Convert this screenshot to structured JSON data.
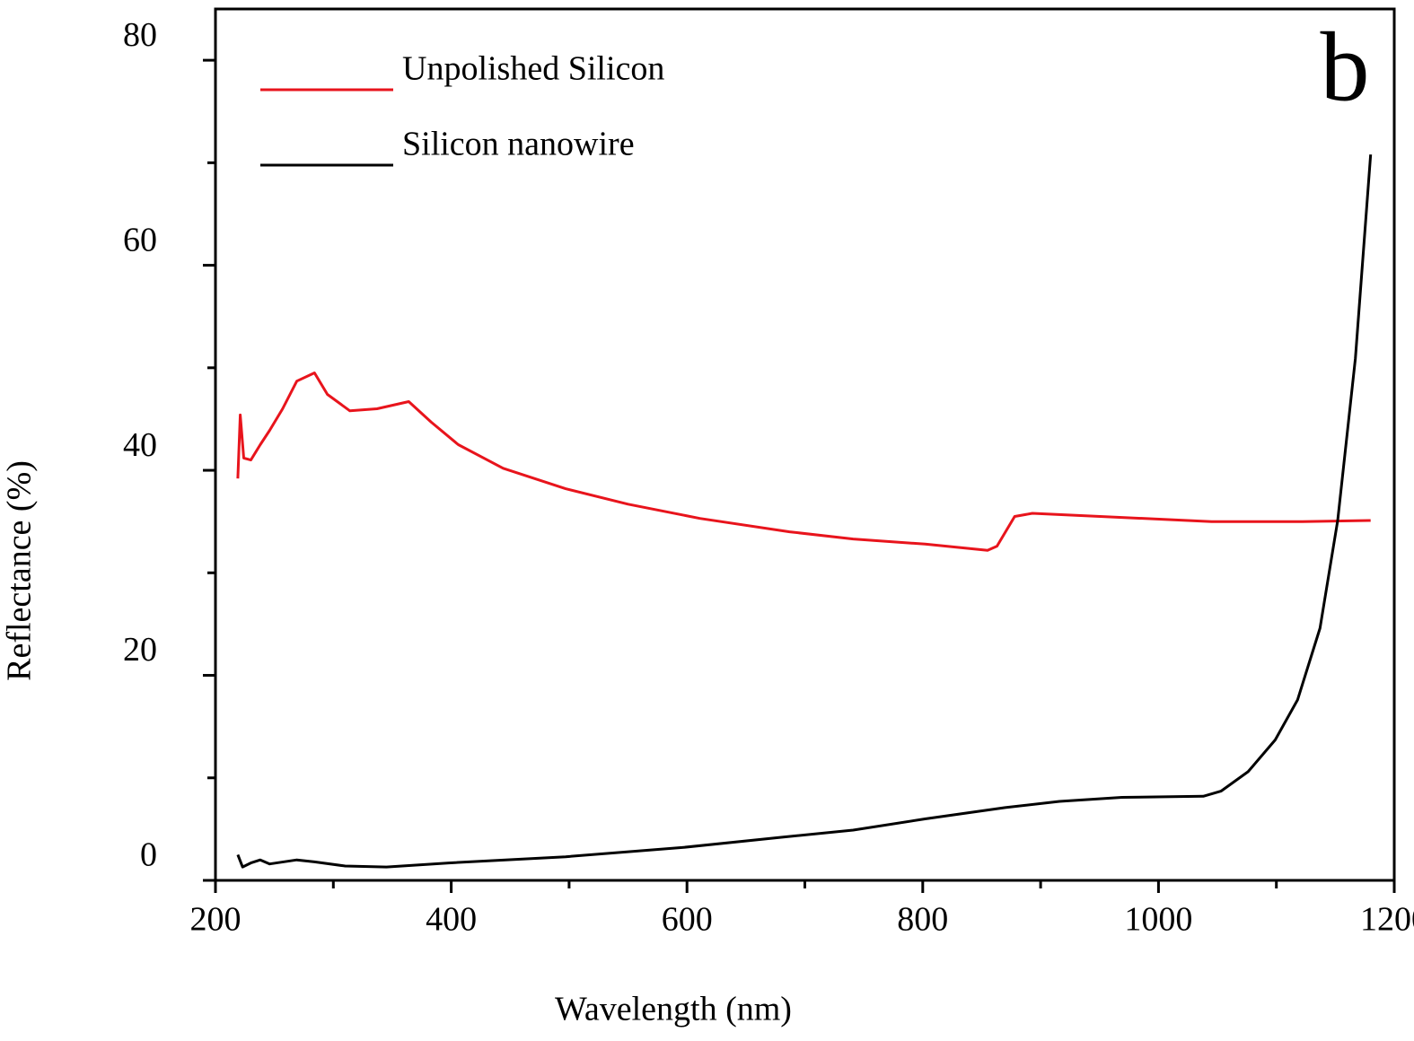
{
  "chart_data": {
    "type": "line",
    "annotation": "b",
    "xlabel": "Wavelength (nm)",
    "ylabel": "Reflectance (%)",
    "xlim": [
      200,
      1200
    ],
    "ylim": [
      0,
      85
    ],
    "xticks": [
      200,
      400,
      600,
      800,
      1000,
      1200
    ],
    "xminorticks": [
      300,
      500,
      700,
      900,
      1100
    ],
    "yticks": [
      0,
      20,
      40,
      60,
      80
    ],
    "yminorticks": [
      10,
      30,
      50,
      70
    ],
    "legend": "upper left",
    "series": [
      {
        "name": "Unpolished Silicon",
        "color": "#e8141c",
        "x": [
          219,
          221,
          224,
          230,
          238,
          246,
          257,
          269,
          284,
          295,
          314,
          337,
          364,
          383,
          406,
          444,
          497,
          550,
          611,
          687,
          741,
          802,
          855,
          863,
          878,
          893,
          969,
          1045,
          1122,
          1180
        ],
        "values": [
          39.2,
          45.4,
          41.2,
          41.0,
          42.5,
          43.9,
          46.0,
          48.7,
          49.5,
          47.4,
          45.8,
          46.0,
          46.7,
          44.7,
          42.5,
          40.2,
          38.2,
          36.7,
          35.3,
          34.0,
          33.3,
          32.8,
          32.2,
          32.6,
          35.5,
          35.8,
          35.4,
          35.0,
          35.0,
          35.1
        ]
      },
      {
        "name": "Silicon nanowire",
        "color": "#000000",
        "x": [
          219,
          223,
          230,
          238,
          246,
          269,
          284,
          310,
          345,
          398,
          497,
          596,
          680,
          741,
          802,
          870,
          916,
          969,
          1038,
          1053,
          1076,
          1099,
          1118,
          1137,
          1152,
          1167,
          1180
        ],
        "values": [
          2.5,
          1.3,
          1.7,
          2.0,
          1.6,
          2.0,
          1.8,
          1.4,
          1.3,
          1.7,
          2.3,
          3.2,
          4.2,
          4.9,
          6.0,
          7.1,
          7.7,
          8.1,
          8.2,
          8.7,
          10.6,
          13.7,
          17.6,
          24.6,
          35.1,
          50.9,
          70.8
        ]
      }
    ]
  }
}
